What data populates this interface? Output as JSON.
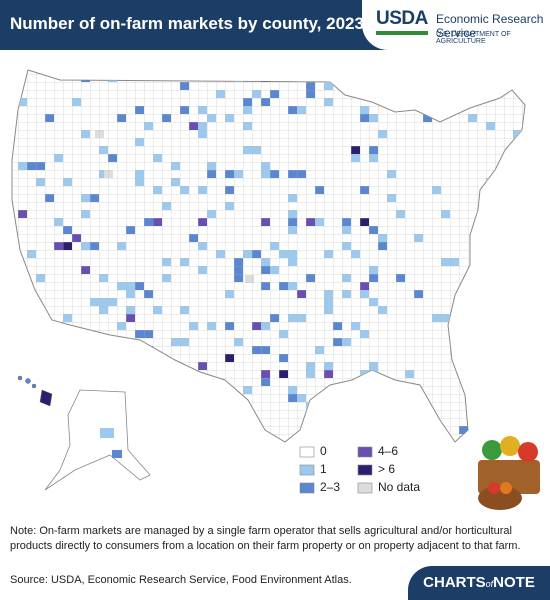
{
  "header": {
    "title": "Number of on-farm markets by county, 2023",
    "logo": {
      "agency": "USDA",
      "service": "Economic Research Service",
      "department": "U.S. DEPARTMENT OF AGRICULTURE"
    }
  },
  "legend": {
    "items": [
      {
        "label": "0",
        "color": "#ffffff"
      },
      {
        "label": "1",
        "color": "#9ec9ee"
      },
      {
        "label": "2–3",
        "color": "#5b86d0"
      },
      {
        "label": "4–6",
        "color": "#6a4fb3"
      },
      {
        "label": "> 6",
        "color": "#2b1f6e"
      },
      {
        "label": "No data",
        "color": "#dddddd"
      }
    ]
  },
  "note": "Note: On-farm markets are managed by a single farm operator that sells agricultural and/or horticultural products directly to consumers from a location on their farm property or on property adjacent to that farm.",
  "source": "Source: USDA, Economic Research Service, Food Environment Atlas.",
  "branding": {
    "first": "CHARTS",
    "middle": "of",
    "last": "NOTE"
  }
}
